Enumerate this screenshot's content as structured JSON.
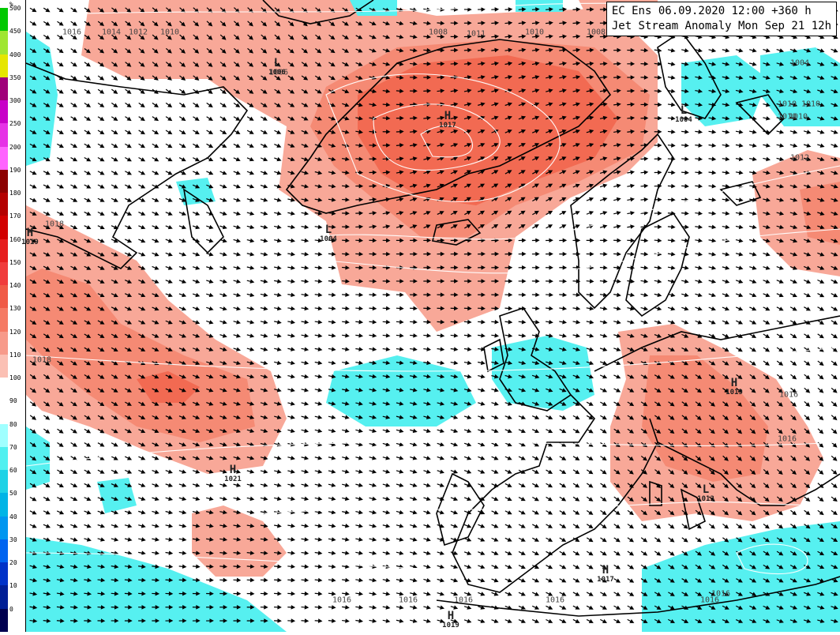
{
  "title": {
    "line1": "EC Ens 06.09.2020 12:00 +360 h",
    "line2": "Jet Stream Anomaly Mon Sep 21 12h"
  },
  "legend": {
    "unit": "%",
    "stops": [
      {
        "label": "500",
        "color": "#00c800"
      },
      {
        "label": "450",
        "color": "#a0e632"
      },
      {
        "label": "400",
        "color": "#e6e600"
      },
      {
        "label": "350",
        "color": "#a0007a"
      },
      {
        "label": "300",
        "color": "#c800c8"
      },
      {
        "label": "250",
        "color": "#e632e6"
      },
      {
        "label": "200",
        "color": "#ff64ff"
      },
      {
        "label": "190",
        "color": "#8c0000"
      },
      {
        "label": "180",
        "color": "#b40000"
      },
      {
        "label": "170",
        "color": "#d20000"
      },
      {
        "label": "160",
        "color": "#e61e1e"
      },
      {
        "label": "150",
        "color": "#f03c3c"
      },
      {
        "label": "140",
        "color": "#f05a46"
      },
      {
        "label": "130",
        "color": "#f57a64"
      },
      {
        "label": "120",
        "color": "#f79a8a"
      },
      {
        "label": "110",
        "color": "#fbc0b4"
      },
      {
        "label": "100",
        "color": "#ffffff"
      },
      {
        "label": "90",
        "color": "#ffffff"
      },
      {
        "label": "80",
        "color": "#a0ffff"
      },
      {
        "label": "70",
        "color": "#50f0f0"
      },
      {
        "label": "60",
        "color": "#1ed2e6"
      },
      {
        "label": "50",
        "color": "#00b4e6"
      },
      {
        "label": "40",
        "color": "#0096f0"
      },
      {
        "label": "30",
        "color": "#0064f0"
      },
      {
        "label": "20",
        "color": "#0032c8"
      },
      {
        "label": "10",
        "color": "#001e96"
      },
      {
        "label": "0",
        "color": "#000050"
      }
    ]
  },
  "pressure_labels": [
    "1016",
    "1014",
    "1012",
    "1010",
    "1008",
    "1006",
    "1011",
    "1010",
    "1008",
    "1004",
    "1010",
    "1010",
    "1010",
    "1010",
    "1012",
    "1018",
    "1018",
    "1016",
    "1016",
    "1016",
    "1016",
    "1016",
    "1016",
    "1016",
    "1016"
  ],
  "centers": [
    {
      "letter": "H",
      "value": "1017"
    },
    {
      "letter": "L",
      "value": "1004"
    },
    {
      "letter": "L",
      "value": "1004"
    },
    {
      "letter": "H",
      "value": "1019"
    },
    {
      "letter": "H",
      "value": "1021"
    },
    {
      "letter": "H",
      "value": "1017"
    },
    {
      "letter": "H",
      "value": "1019"
    },
    {
      "letter": "L",
      "value": "1013"
    },
    {
      "letter": "L",
      "value": "1006"
    },
    {
      "letter": "H",
      "value": "1019"
    }
  ],
  "colors": {
    "anomaly_high_light": "#f8a898",
    "anomaly_high_mid": "#f58a74",
    "anomaly_high_strong": "#f26a52",
    "anomaly_low": "#56f0f0",
    "isobar": "#ffffff",
    "coast": "#000000"
  }
}
